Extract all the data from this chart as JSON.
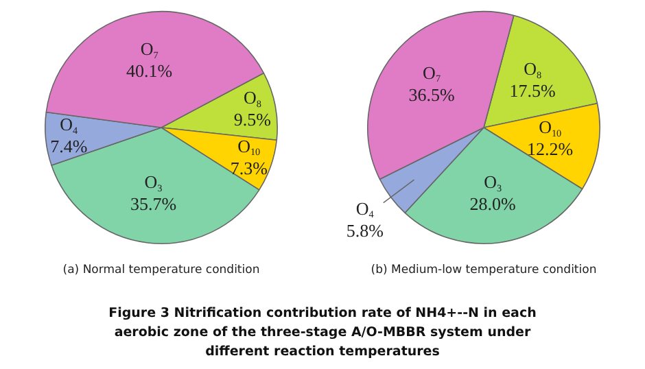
{
  "chart_data": [
    {
      "type": "pie",
      "title": "(a) Normal temperature condition",
      "categories": [
        "O$_{8}$",
        "O$_{10}$",
        "O$_{3}$",
        "O$_{4}$",
        "O$_{7}$"
      ],
      "values": [
        9.5,
        7.3,
        35.7,
        7.4,
        40.1
      ],
      "value_labels": [
        "9.5%",
        "7.3%",
        "35.7%",
        "7.4%",
        "40.1%"
      ],
      "colors": [
        "#bfe03a",
        "#ffd400",
        "#80d4a8",
        "#95a9dc",
        "#e07cc6"
      ],
      "legend": false,
      "annotations": [
        "Figure 3 Nitrification contribution rate of NH4+--N in each aerobic zone of the three-stage A/O-MBBR system under different reaction temperatures"
      ]
    },
    {
      "type": "pie",
      "title": "(b) Medium-low temperature condition",
      "categories": [
        "O$_{8}$",
        "O$_{10}$",
        "O$_{3}$",
        "O$_{4}$",
        "O$_{7}$"
      ],
      "values": [
        17.5,
        12.2,
        28.0,
        5.8,
        36.5
      ],
      "value_labels": [
        "17.5%",
        "12.2%",
        "28.0%",
        "5.8%",
        "36.5%"
      ],
      "colors": [
        "#bfe03a",
        "#ffd400",
        "#80d4a8",
        "#95a9dc",
        "#e07cc6"
      ],
      "legend": false
    }
  ]
}
